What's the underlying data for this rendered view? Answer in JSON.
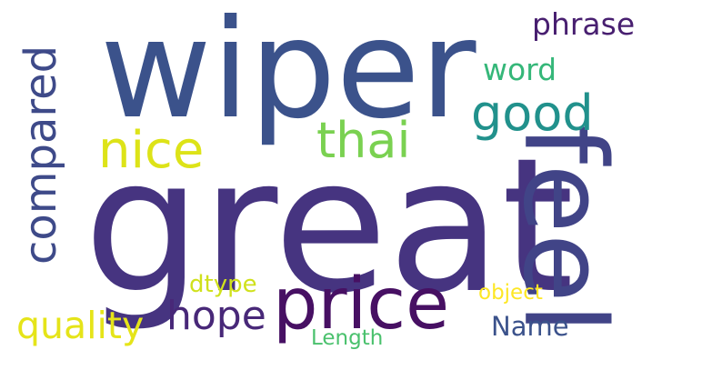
{
  "words": {
    "great": {
      "text": "great",
      "color": "#463480"
    },
    "wiper": {
      "text": "wiper",
      "color": "#3b528b"
    },
    "feel": {
      "text": "feel",
      "color": "#414487"
    },
    "price": {
      "text": "price",
      "color": "#471063"
    },
    "compared": {
      "text": "compared",
      "color": "#3e4a89"
    },
    "good": {
      "text": "good",
      "color": "#21918c"
    },
    "nice": {
      "text": "nice",
      "color": "#dde318"
    },
    "thai": {
      "text": "thai",
      "color": "#7ad151"
    },
    "hope": {
      "text": "hope",
      "color": "#482878"
    },
    "quality": {
      "text": "quality",
      "color": "#e5e419"
    },
    "phrase": {
      "text": "phrase",
      "color": "#481f70"
    },
    "word": {
      "text": "word",
      "color": "#35b779"
    },
    "name": {
      "text": "Name",
      "color": "#3b528b"
    },
    "dtype": {
      "text": "dtype",
      "color": "#d0e11c"
    },
    "object": {
      "text": "object",
      "color": "#fde725"
    },
    "length": {
      "text": "Length",
      "color": "#4ac16d"
    }
  }
}
